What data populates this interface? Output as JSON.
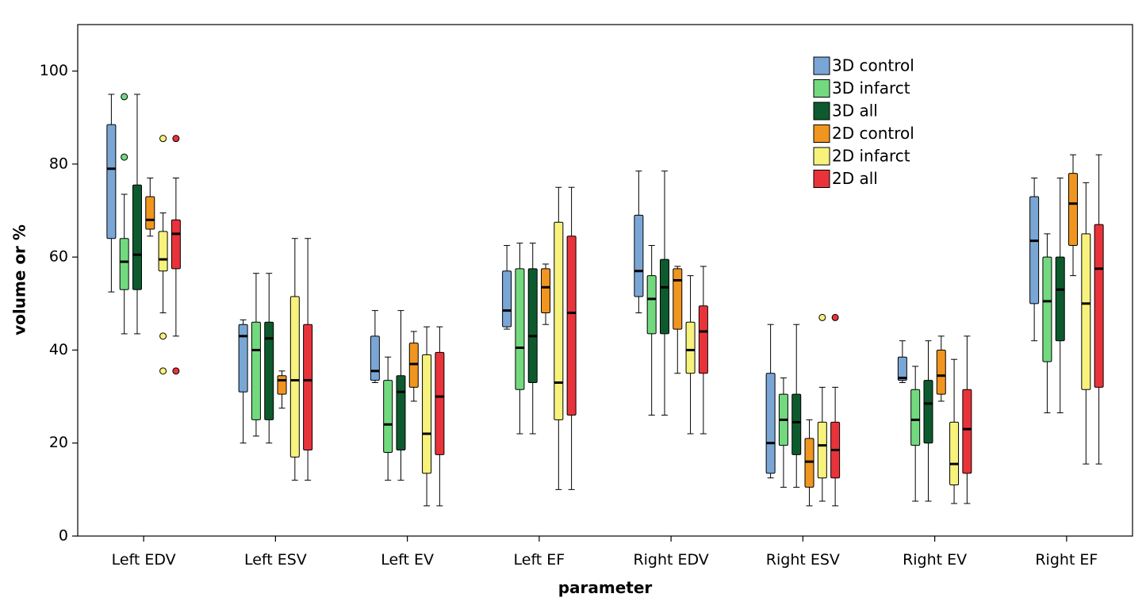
{
  "chart_data": {
    "type": "boxplot",
    "xlabel": "parameter",
    "ylabel": "volume or %",
    "ylim": [
      0,
      110
    ],
    "yticks": [
      0,
      20,
      40,
      60,
      80,
      100
    ],
    "categories": [
      "Left EDV",
      "Left ESV",
      "Left EV",
      "Left EF",
      "Right EDV",
      "Right ESV",
      "Right EV",
      "Right EF"
    ],
    "legend_position": "top-right",
    "series": [
      {
        "name": "3D control",
        "color": "#7aa6d6",
        "boxes": [
          {
            "min": 52.5,
            "q1": 64,
            "median": 79,
            "q3": 88.5,
            "max": 95,
            "outliers": []
          },
          {
            "min": 20,
            "q1": 31,
            "median": 43,
            "q3": 45.5,
            "max": 46.5,
            "outliers": []
          },
          {
            "min": 33,
            "q1": 33.5,
            "median": 35.5,
            "q3": 43,
            "max": 48.5,
            "outliers": []
          },
          {
            "min": 44.5,
            "q1": 45,
            "median": 48.5,
            "q3": 57,
            "max": 62.5,
            "outliers": []
          },
          {
            "min": 48,
            "q1": 51.5,
            "median": 57,
            "q3": 69,
            "max": 78.5,
            "outliers": []
          },
          {
            "min": 12.5,
            "q1": 13.5,
            "median": 20,
            "q3": 35,
            "max": 45.5,
            "outliers": []
          },
          {
            "min": 33,
            "q1": 33.5,
            "median": 34,
            "q3": 38.5,
            "max": 42,
            "outliers": []
          },
          {
            "min": 42,
            "q1": 50,
            "median": 63.5,
            "q3": 73,
            "max": 77,
            "outliers": []
          }
        ]
      },
      {
        "name": "3D infarct",
        "color": "#72d97f",
        "boxes": [
          {
            "min": 43.5,
            "q1": 53,
            "median": 59,
            "q3": 64,
            "max": 73.5,
            "outliers": [
              81.5,
              94.5
            ]
          },
          {
            "min": 21.5,
            "q1": 25,
            "median": 40,
            "q3": 46,
            "max": 56.5,
            "outliers": []
          },
          {
            "min": 12,
            "q1": 18,
            "median": 24,
            "q3": 33.5,
            "max": 38.5,
            "outliers": []
          },
          {
            "min": 22,
            "q1": 31.5,
            "median": 40.5,
            "q3": 57.5,
            "max": 63,
            "outliers": []
          },
          {
            "min": 26,
            "q1": 43.5,
            "median": 51,
            "q3": 56,
            "max": 62.5,
            "outliers": []
          },
          {
            "min": 10.5,
            "q1": 19.5,
            "median": 25,
            "q3": 30.5,
            "max": 34,
            "outliers": []
          },
          {
            "min": 7.5,
            "q1": 19.5,
            "median": 25,
            "q3": 31.5,
            "max": 36.5,
            "outliers": []
          },
          {
            "min": 26.5,
            "q1": 37.5,
            "median": 50.5,
            "q3": 60,
            "max": 65,
            "outliers": []
          }
        ]
      },
      {
        "name": "3D all",
        "color": "#0d5a2e",
        "boxes": [
          {
            "min": 43.5,
            "q1": 53,
            "median": 60.5,
            "q3": 75.5,
            "max": 95,
            "outliers": []
          },
          {
            "min": 20,
            "q1": 25,
            "median": 42.5,
            "q3": 46,
            "max": 56.5,
            "outliers": []
          },
          {
            "min": 12,
            "q1": 18.5,
            "median": 31,
            "q3": 34.5,
            "max": 48.5,
            "outliers": []
          },
          {
            "min": 22,
            "q1": 33,
            "median": 43,
            "q3": 57.5,
            "max": 63,
            "outliers": []
          },
          {
            "min": 26,
            "q1": 43.5,
            "median": 53.5,
            "q3": 59.5,
            "max": 78.5,
            "outliers": []
          },
          {
            "min": 10.5,
            "q1": 17.5,
            "median": 24.5,
            "q3": 30.5,
            "max": 45.5,
            "outliers": []
          },
          {
            "min": 7.5,
            "q1": 20,
            "median": 28.5,
            "q3": 33.5,
            "max": 42,
            "outliers": []
          },
          {
            "min": 26.5,
            "q1": 42,
            "median": 53,
            "q3": 60,
            "max": 77,
            "outliers": []
          }
        ]
      },
      {
        "name": "2D control",
        "color": "#f0951f",
        "boxes": [
          {
            "min": 64.5,
            "q1": 66,
            "median": 68,
            "q3": 73,
            "max": 77,
            "outliers": []
          },
          {
            "min": 27.5,
            "q1": 30.5,
            "median": 33.5,
            "q3": 34.5,
            "max": 35.5,
            "outliers": []
          },
          {
            "min": 29,
            "q1": 32,
            "median": 37,
            "q3": 41.5,
            "max": 44,
            "outliers": []
          },
          {
            "min": 45.5,
            "q1": 48,
            "median": 53.5,
            "q3": 57.5,
            "max": 58.5,
            "outliers": []
          },
          {
            "min": 35,
            "q1": 44.5,
            "median": 55,
            "q3": 57.5,
            "max": 58,
            "outliers": []
          },
          {
            "min": 6.5,
            "q1": 10.5,
            "median": 16,
            "q3": 21,
            "max": 25,
            "outliers": []
          },
          {
            "min": 29,
            "q1": 30.5,
            "median": 34.5,
            "q3": 40,
            "max": 43,
            "outliers": []
          },
          {
            "min": 56,
            "q1": 62.5,
            "median": 71.5,
            "q3": 78,
            "max": 82,
            "outliers": []
          }
        ]
      },
      {
        "name": "2D infarct",
        "color": "#f7f27c",
        "boxes": [
          {
            "min": 48,
            "q1": 57,
            "median": 59.5,
            "q3": 65.5,
            "max": 69.5,
            "outliers": [
              85.5,
              43,
              35.5
            ]
          },
          {
            "min": 12,
            "q1": 17,
            "median": 33.5,
            "q3": 51.5,
            "max": 64,
            "outliers": []
          },
          {
            "min": 6.5,
            "q1": 13.5,
            "median": 22,
            "q3": 39,
            "max": 45,
            "outliers": []
          },
          {
            "min": 10,
            "q1": 25,
            "median": 33,
            "q3": 67.5,
            "max": 75,
            "outliers": []
          },
          {
            "min": 22,
            "q1": 35,
            "median": 40,
            "q3": 46,
            "max": 56,
            "outliers": []
          },
          {
            "min": 7.5,
            "q1": 12.5,
            "median": 19.5,
            "q3": 24.5,
            "max": 32,
            "outliers": [
              47
            ]
          },
          {
            "min": 7,
            "q1": 11,
            "median": 15.5,
            "q3": 24.5,
            "max": 38,
            "outliers": []
          },
          {
            "min": 15.5,
            "q1": 31.5,
            "median": 50,
            "q3": 65,
            "max": 76,
            "outliers": []
          }
        ]
      },
      {
        "name": "2D all",
        "color": "#e8333a",
        "boxes": [
          {
            "min": 43,
            "q1": 57.5,
            "median": 65,
            "q3": 68,
            "max": 77,
            "outliers": [
              85.5,
              35.5
            ]
          },
          {
            "min": 12,
            "q1": 18.5,
            "median": 33.5,
            "q3": 45.5,
            "max": 64,
            "outliers": []
          },
          {
            "min": 6.5,
            "q1": 17.5,
            "median": 30,
            "q3": 39.5,
            "max": 45,
            "outliers": []
          },
          {
            "min": 10,
            "q1": 26,
            "median": 48,
            "q3": 64.5,
            "max": 75,
            "outliers": []
          },
          {
            "min": 22,
            "q1": 35,
            "median": 44,
            "q3": 49.5,
            "max": 58,
            "outliers": []
          },
          {
            "min": 6.5,
            "q1": 12.5,
            "median": 18.5,
            "q3": 24.5,
            "max": 32,
            "outliers": [
              47
            ]
          },
          {
            "min": 7,
            "q1": 13.5,
            "median": 23,
            "q3": 31.5,
            "max": 43,
            "outliers": []
          },
          {
            "min": 15.5,
            "q1": 32,
            "median": 57.5,
            "q3": 67,
            "max": 82,
            "outliers": []
          }
        ]
      }
    ]
  }
}
